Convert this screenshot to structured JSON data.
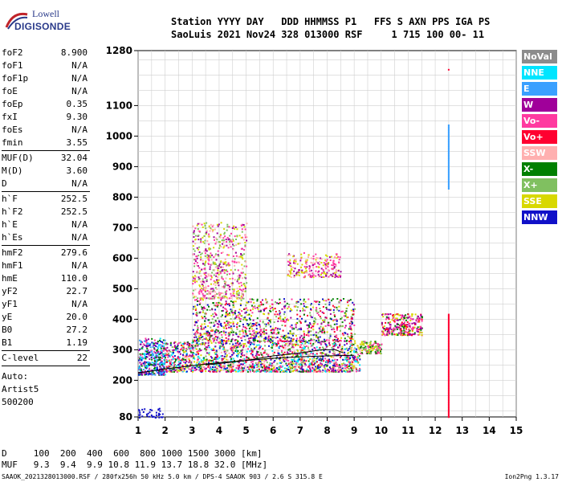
{
  "logo": {
    "line1": "Lowell",
    "line2": "DIGISONDE"
  },
  "header": {
    "line1": "Station YYYY DAY   DDD HHMMSS P1   FFS S AXN PPS IGA PS",
    "line2": "SaoLuis 2021 Nov24 328 013000 RSF     1 715 100 00- 11"
  },
  "params": [
    {
      "k": "foF2",
      "v": "8.900"
    },
    {
      "k": "foF1",
      "v": "N/A"
    },
    {
      "k": "foF1p",
      "v": "N/A"
    },
    {
      "k": "foE",
      "v": "N/A"
    },
    {
      "k": "foEp",
      "v": "0.35"
    },
    {
      "k": "fxI",
      "v": "9.30"
    },
    {
      "k": "foEs",
      "v": "N/A"
    },
    {
      "k": "fmin",
      "v": "3.55"
    },
    {
      "sep": true
    },
    {
      "k": "MUF(D)",
      "v": "32.04"
    },
    {
      "k": "M(D)",
      "v": "3.60"
    },
    {
      "k": "D",
      "v": "N/A"
    },
    {
      "sep": true
    },
    {
      "k": "h`F",
      "v": "252.5"
    },
    {
      "k": "h`F2",
      "v": "252.5"
    },
    {
      "k": "h`E",
      "v": "N/A"
    },
    {
      "k": "h`Es",
      "v": "N/A"
    },
    {
      "sep": true
    },
    {
      "k": "hmF2",
      "v": "279.6"
    },
    {
      "k": "hmF1",
      "v": "N/A"
    },
    {
      "k": "hmE",
      "v": "110.0"
    },
    {
      "k": "yF2",
      "v": "22.7"
    },
    {
      "k": "yF1",
      "v": "N/A"
    },
    {
      "k": "yE",
      "v": "20.0"
    },
    {
      "k": "B0",
      "v": "27.2"
    },
    {
      "k": "B1",
      "v": "1.19"
    },
    {
      "sep": true
    },
    {
      "k": "C-level",
      "v": "22"
    },
    {
      "sep": true
    }
  ],
  "auto": {
    "line1": "Auto:",
    "line2": "Artist5",
    "line3": "500200"
  },
  "legend": [
    {
      "label": "NoVal",
      "color": "#8c8c8c"
    },
    {
      "label": "NNE",
      "color": "#00e5ff"
    },
    {
      "label": "E",
      "color": "#3aa0ff"
    },
    {
      "label": "W",
      "color": "#a0009a"
    },
    {
      "label": "Vo-",
      "color": "#ff3aa0"
    },
    {
      "label": "Vo+",
      "color": "#ff0030"
    },
    {
      "label": "SSW",
      "color": "#ffb0b0"
    },
    {
      "label": "X-",
      "color": "#008000"
    },
    {
      "label": "X+",
      "color": "#80c060"
    },
    {
      "label": "SSE",
      "color": "#d8d800"
    },
    {
      "label": "NNW",
      "color": "#1010c8"
    }
  ],
  "chart_data": {
    "type": "scatter",
    "xlim": [
      1,
      15
    ],
    "ylim": [
      80,
      1280
    ],
    "x_ticks": [
      1,
      2,
      3,
      4,
      5,
      6,
      7,
      8,
      9,
      10,
      11,
      12,
      13,
      14,
      15
    ],
    "y_ticks": [
      80,
      200,
      300,
      400,
      500,
      600,
      700,
      800,
      900,
      1000,
      1100,
      1280
    ],
    "grid": true,
    "trace_curve": [
      [
        1.0,
        225
      ],
      [
        1.5,
        230
      ],
      [
        2.0,
        237
      ],
      [
        3.0,
        248
      ],
      [
        4.0,
        258
      ],
      [
        5.0,
        265
      ],
      [
        6.0,
        272
      ],
      [
        7.0,
        277
      ],
      [
        8.0,
        280
      ],
      [
        9.0,
        282
      ]
    ],
    "profile_curve": [
      [
        3.5,
        250
      ],
      [
        5.0,
        265
      ],
      [
        6.0,
        280
      ],
      [
        7.0,
        290
      ],
      [
        7.8,
        300
      ],
      [
        8.3,
        300
      ],
      [
        8.6,
        290
      ]
    ],
    "clusters": [
      {
        "x": [
          1.0,
          2.0
        ],
        "y": [
          220,
          340
        ],
        "n": 380,
        "colors": [
          "#1010c8",
          "#a0009a",
          "#00e5ff",
          "#3aa0ff",
          "#ff3aa0",
          "#008000"
        ]
      },
      {
        "x": [
          2.0,
          9.2
        ],
        "y": [
          230,
          330
        ],
        "n": 1700,
        "colors": [
          "#1010c8",
          "#a0009a",
          "#ff3aa0",
          "#ff0030",
          "#008000",
          "#80c060",
          "#d8d800",
          "#ffb0b0",
          "#00e5ff"
        ]
      },
      {
        "x": [
          3.0,
          9.0
        ],
        "y": [
          330,
          470
        ],
        "n": 1000,
        "colors": [
          "#a0009a",
          "#ff3aa0",
          "#ff0030",
          "#1010c8",
          "#008000",
          "#80c060",
          "#d8d800"
        ]
      },
      {
        "x": [
          3.0,
          5.0
        ],
        "y": [
          470,
          720
        ],
        "n": 600,
        "colors": [
          "#a0009a",
          "#ff3aa0",
          "#d8d800",
          "#80c060",
          "#ffb0b0"
        ]
      },
      {
        "x": [
          6.5,
          8.5
        ],
        "y": [
          540,
          620
        ],
        "n": 220,
        "colors": [
          "#ff3aa0",
          "#a0009a",
          "#d8d800",
          "#ffb0b0"
        ]
      },
      {
        "x": [
          10.0,
          11.5
        ],
        "y": [
          350,
          420
        ],
        "n": 280,
        "colors": [
          "#d8d800",
          "#a0009a",
          "#ff0030",
          "#ff3aa0",
          "#008000"
        ]
      },
      {
        "x": [
          1.0,
          1.9
        ],
        "y": [
          80,
          110
        ],
        "n": 40,
        "colors": [
          "#1010c8"
        ]
      },
      {
        "x": [
          9.2,
          10.0
        ],
        "y": [
          290,
          330
        ],
        "n": 120,
        "colors": [
          "#008000",
          "#80c060",
          "#d8d800",
          "#ff3aa0"
        ]
      }
    ],
    "vlines": [
      {
        "x": 12.5,
        "y": [
          82,
          420
        ],
        "color": "#ff0030"
      },
      {
        "x": 12.5,
        "y": [
          830,
          1040
        ],
        "color": "#3aa0ff"
      }
    ],
    "isolated": [
      {
        "x": 12.5,
        "y": 1220,
        "color": "#ff0030"
      }
    ]
  },
  "footer": {
    "line1": "D     100  200  400  600  800 1000 1500 3000 [km]",
    "line2": "MUF   9.3  9.4  9.9 10.8 11.9 13.7 18.8 32.0 [MHz]",
    "line3": "SAAOK_2021328013000.RSF / 280fx256h 50 kHz 5.0 km / DPS-4 SAAOK 903 / 2.6 S 315.8 E",
    "line4": "Ion2Png 1.3.17"
  }
}
